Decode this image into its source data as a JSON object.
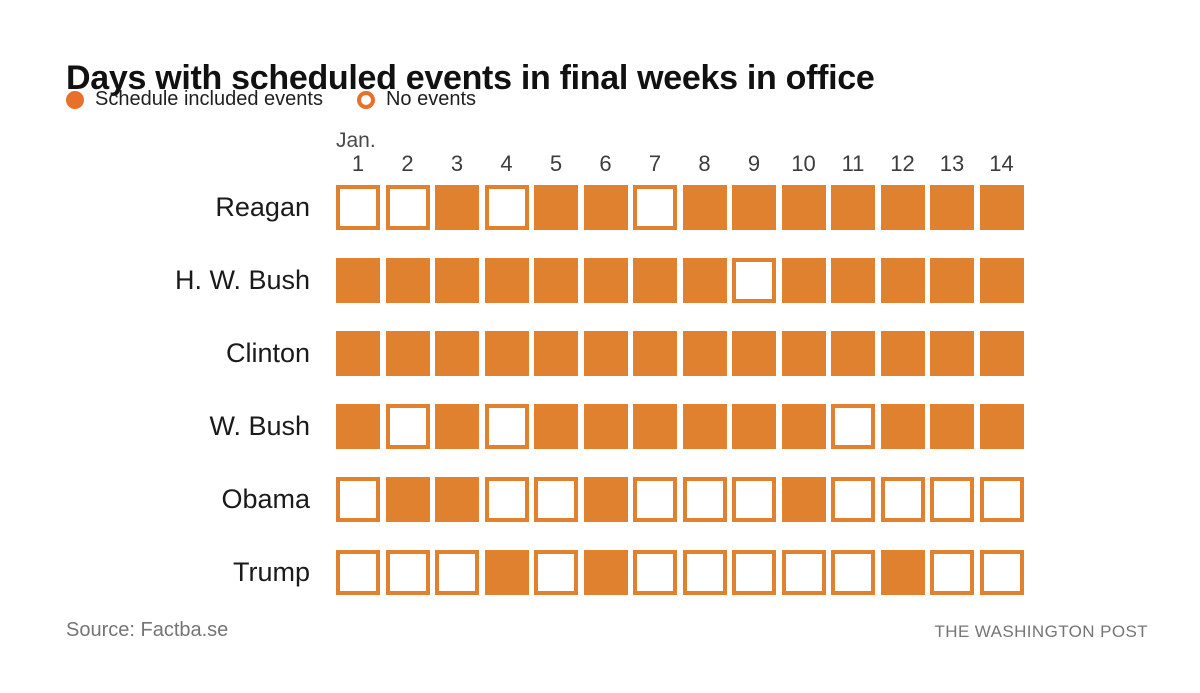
{
  "title": "Days with scheduled events in final weeks in office",
  "legend": {
    "filled_label": "Schedule included events",
    "empty_label": "No events"
  },
  "month_label": "Jan.",
  "days": [
    "1",
    "2",
    "3",
    "4",
    "5",
    "6",
    "7",
    "8",
    "9",
    "10",
    "11",
    "12",
    "13",
    "14"
  ],
  "footer": {
    "source": "Source: Factba.se",
    "attribution": "THE WASHINGTON POST"
  },
  "colors": {
    "accent": "#e0812f",
    "legend_marker": "#e8702b",
    "title_color": "#111111",
    "day_color": "#3d3d3d",
    "month_color": "#4a4a4a",
    "muted": "#757575"
  },
  "chart_data": {
    "type": "heatmap",
    "title": "Days with scheduled events in final weeks in office",
    "xlabel": "Jan.",
    "x": [
      1,
      2,
      3,
      4,
      5,
      6,
      7,
      8,
      9,
      10,
      11,
      12,
      13,
      14
    ],
    "value_meaning": {
      "1": "Schedule included events",
      "0": "No events"
    },
    "legend_position": "top-left",
    "rows": [
      {
        "name": "Reagan",
        "values": [
          0,
          0,
          1,
          0,
          1,
          1,
          0,
          1,
          1,
          1,
          1,
          1,
          1,
          1
        ]
      },
      {
        "name": "H. W. Bush",
        "values": [
          1,
          1,
          1,
          1,
          1,
          1,
          1,
          1,
          0,
          1,
          1,
          1,
          1,
          1
        ]
      },
      {
        "name": "Clinton",
        "values": [
          1,
          1,
          1,
          1,
          1,
          1,
          1,
          1,
          1,
          1,
          1,
          1,
          1,
          1
        ]
      },
      {
        "name": "W. Bush",
        "values": [
          1,
          0,
          1,
          0,
          1,
          1,
          1,
          1,
          1,
          1,
          0,
          1,
          1,
          1
        ]
      },
      {
        "name": "Obama",
        "values": [
          0,
          1,
          1,
          0,
          0,
          1,
          0,
          0,
          0,
          1,
          0,
          0,
          0,
          0
        ]
      },
      {
        "name": "Trump",
        "values": [
          0,
          0,
          0,
          1,
          0,
          1,
          0,
          0,
          0,
          0,
          0,
          1,
          0,
          0
        ]
      }
    ]
  }
}
